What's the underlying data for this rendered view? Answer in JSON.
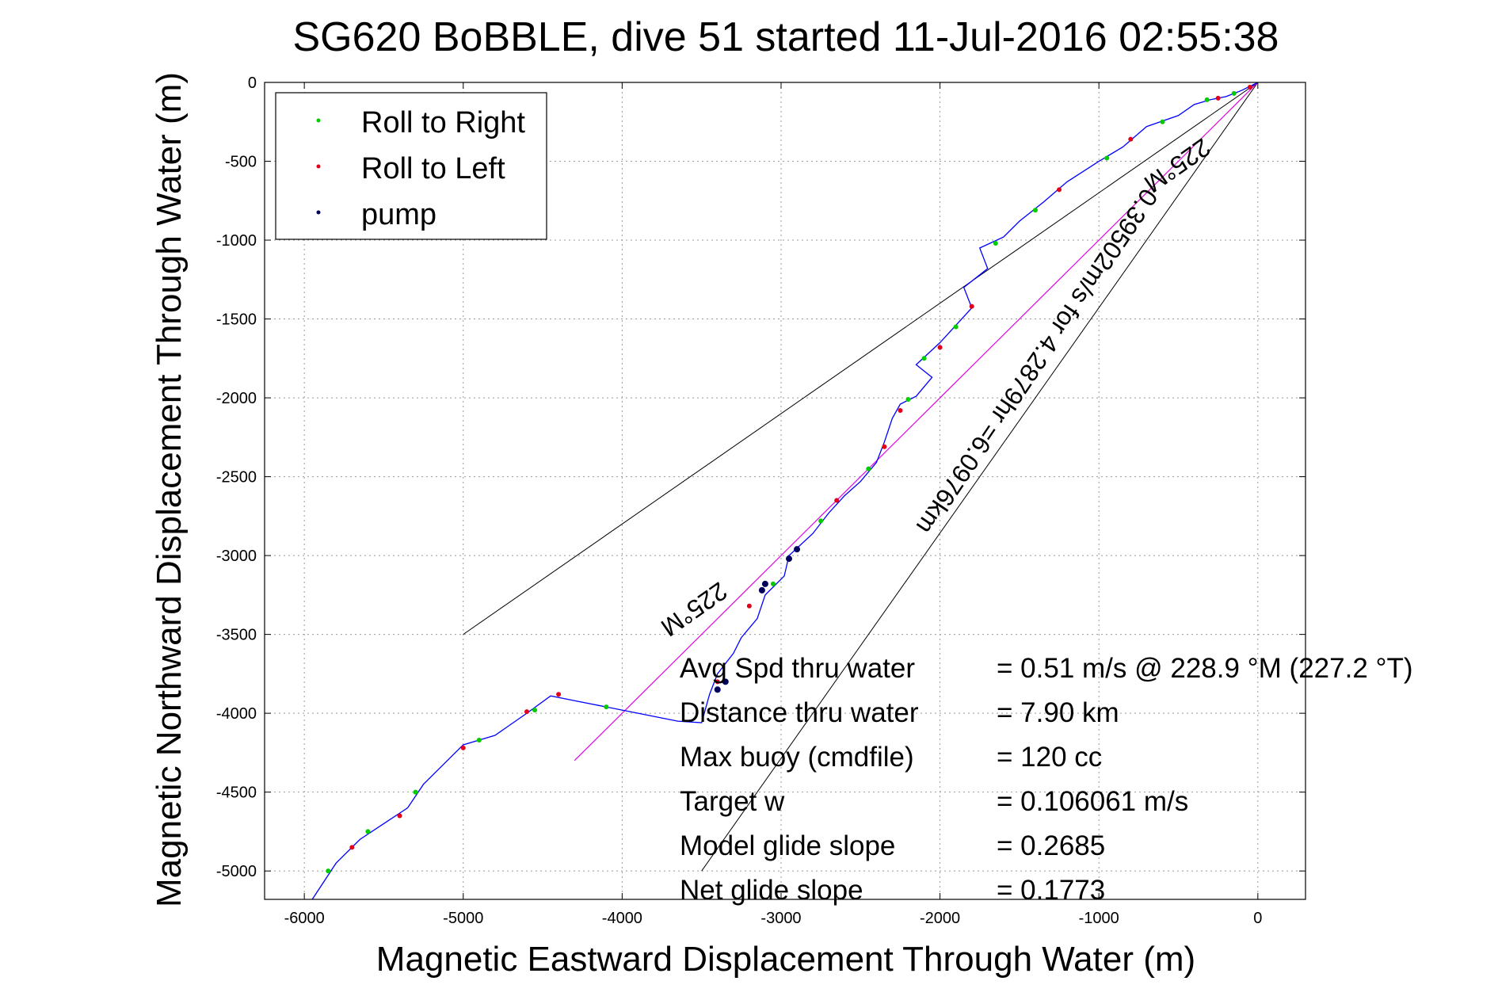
{
  "chart_data": {
    "type": "line",
    "title": "SG620 BoBBLE, dive 51 started 11-Jul-2016 02:55:38",
    "xlabel": "Magnetic Eastward Displacement Through Water (m)",
    "ylabel": "Magnetic Northward Displacement Through Water (m)",
    "xlim": [
      -6250,
      300
    ],
    "ylim": [
      -5180,
      0
    ],
    "xticks": [
      -6000,
      -5000,
      -4000,
      -3000,
      -2000,
      -1000,
      0
    ],
    "yticks": [
      0,
      -500,
      -1000,
      -1500,
      -2000,
      -2500,
      -3000,
      -3500,
      -4000,
      -4500,
      -5000
    ],
    "xtick_labels": [
      "-6000",
      "-5000",
      "-4000",
      "-3000",
      "-2000",
      "-1000",
      "0"
    ],
    "ytick_labels": [
      "0",
      "-500",
      "-1000",
      "-1500",
      "-2000",
      "-2500",
      "-3000",
      "-3500",
      "-4000",
      "-4500",
      "-5000"
    ],
    "grid": true,
    "legend_position": "top-left",
    "legend": [
      {
        "label": "Roll to Right",
        "color": "#00cc00"
      },
      {
        "label": "Roll to Left",
        "color": "#e0001a"
      },
      {
        "label": "pump",
        "color": "#00005a"
      }
    ],
    "track_color": "#0000ff",
    "track": [
      [
        0,
        0
      ],
      [
        -100,
        -50
      ],
      [
        -200,
        -90
      ],
      [
        -300,
        -110
      ],
      [
        -400,
        -140
      ],
      [
        -500,
        -210
      ],
      [
        -700,
        -280
      ],
      [
        -850,
        -410
      ],
      [
        -1000,
        -500
      ],
      [
        -1200,
        -630
      ],
      [
        -1350,
        -760
      ],
      [
        -1500,
        -880
      ],
      [
        -1600,
        -980
      ],
      [
        -1750,
        -1050
      ],
      [
        -1700,
        -1180
      ],
      [
        -1850,
        -1300
      ],
      [
        -1800,
        -1430
      ],
      [
        -2000,
        -1650
      ],
      [
        -2150,
        -1790
      ],
      [
        -2050,
        -1870
      ],
      [
        -2150,
        -1990
      ],
      [
        -2250,
        -2040
      ],
      [
        -2300,
        -2130
      ],
      [
        -2350,
        -2280
      ],
      [
        -2400,
        -2410
      ],
      [
        -2500,
        -2530
      ],
      [
        -2600,
        -2620
      ],
      [
        -2700,
        -2730
      ],
      [
        -2800,
        -2860
      ],
      [
        -2950,
        -3000
      ],
      [
        -2980,
        -3130
      ],
      [
        -3100,
        -3250
      ],
      [
        -3150,
        -3400
      ],
      [
        -3250,
        -3520
      ],
      [
        -3300,
        -3620
      ],
      [
        -3400,
        -3750
      ],
      [
        -3450,
        -3880
      ],
      [
        -3500,
        -4060
      ],
      [
        -3650,
        -4050
      ],
      [
        -3900,
        -4000
      ],
      [
        -4150,
        -3950
      ],
      [
        -4300,
        -3920
      ],
      [
        -4450,
        -3890
      ],
      [
        -4600,
        -4000
      ],
      [
        -4800,
        -4140
      ],
      [
        -5000,
        -4200
      ],
      [
        -5100,
        -4300
      ],
      [
        -5250,
        -4450
      ],
      [
        -5350,
        -4600
      ],
      [
        -5500,
        -4700
      ],
      [
        -5650,
        -4800
      ],
      [
        -5800,
        -4950
      ],
      [
        -5950,
        -5180
      ]
    ],
    "green_dots": [
      [
        -150,
        -70
      ],
      [
        -320,
        -110
      ],
      [
        -600,
        -250
      ],
      [
        -950,
        -480
      ],
      [
        -1400,
        -810
      ],
      [
        -1650,
        -1020
      ],
      [
        -1900,
        -1550
      ],
      [
        -2100,
        -1750
      ],
      [
        -2200,
        -2010
      ],
      [
        -2450,
        -2450
      ],
      [
        -2750,
        -2780
      ],
      [
        -3050,
        -3180
      ],
      [
        -4100,
        -3960
      ],
      [
        -4550,
        -3980
      ],
      [
        -4900,
        -4170
      ],
      [
        -5300,
        -4500
      ],
      [
        -5600,
        -4750
      ],
      [
        -5850,
        -5000
      ]
    ],
    "red_dots": [
      [
        -50,
        -30
      ],
      [
        -250,
        -100
      ],
      [
        -800,
        -360
      ],
      [
        -1250,
        -680
      ],
      [
        -1800,
        -1420
      ],
      [
        -2000,
        -1680
      ],
      [
        -2250,
        -2080
      ],
      [
        -2350,
        -2310
      ],
      [
        -2650,
        -2650
      ],
      [
        -3200,
        -3320
      ],
      [
        -3400,
        -3800
      ],
      [
        -4400,
        -3880
      ],
      [
        -4600,
        -3990
      ],
      [
        -5000,
        -4220
      ],
      [
        -5400,
        -4650
      ],
      [
        -5700,
        -4850
      ]
    ],
    "pump_dots": [
      [
        -2900,
        -2960
      ],
      [
        -2950,
        -3020
      ],
      [
        -3100,
        -3180
      ],
      [
        -3120,
        -3220
      ],
      [
        -3350,
        -3800
      ],
      [
        -3400,
        -3850
      ]
    ],
    "reference_lines": {
      "color": "#000000",
      "fan_lines": [
        {
          "from": [
            0,
            0
          ],
          "to": [
            -5000,
            -3500
          ]
        },
        {
          "from": [
            0,
            0
          ],
          "to": [
            -3500,
            -5000
          ]
        }
      ],
      "heading_line": {
        "from": [
          -1000,
          -440
        ],
        "to": [
          -4300,
          -4300
        ],
        "color": "#e000e0"
      }
    },
    "diagonal_labels": [
      "225°M",
      "0.39502m/s for 4.2879hr =6.0976km",
      "225°M"
    ],
    "stats": [
      {
        "label": "Avg Spd thru water",
        "value": "=  0.51 m/s @ 228.9 °M (227.2 °T)"
      },
      {
        "label": "Distance thru water",
        "value": "=  7.90 km"
      },
      {
        "label": "Max buoy (cmdfile)",
        "value": "= 120 cc"
      },
      {
        "label": "Target w",
        "value": "= 0.106061 m/s"
      },
      {
        "label": "Model glide slope",
        "value": "= 0.2685"
      },
      {
        "label": "Net glide slope",
        "value": "= 0.1773"
      }
    ]
  }
}
